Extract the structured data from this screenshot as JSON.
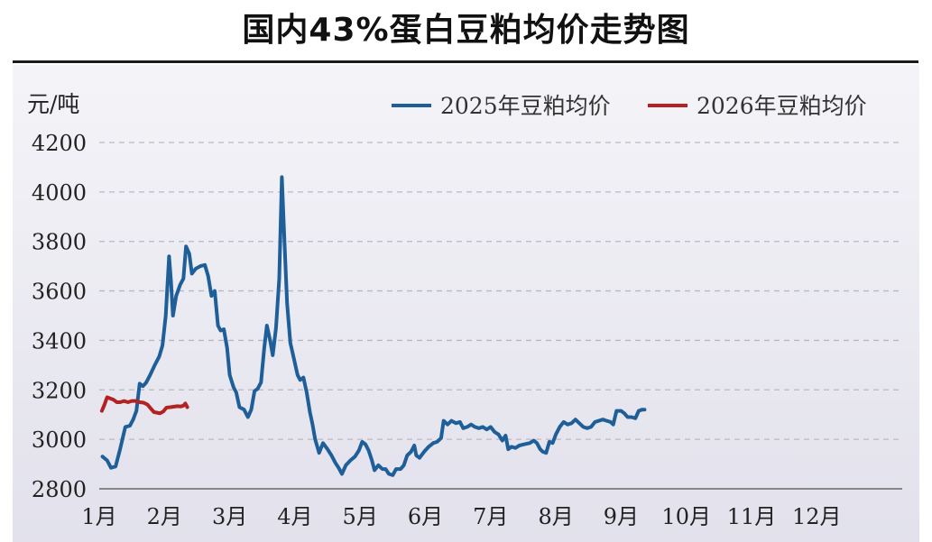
{
  "chart_data": {
    "type": "line",
    "title": "国内43%蛋白豆粕均价走势图",
    "ylabel": "元/吨",
    "ylim": [
      2800,
      4200
    ],
    "yticks": [
      2800,
      3000,
      3200,
      3400,
      3600,
      3800,
      4000,
      4200
    ],
    "xticks": [
      "1月",
      "2月",
      "3月",
      "4月",
      "5月",
      "6月",
      "7月",
      "8月",
      "9月",
      "10月",
      "11月",
      "12月"
    ],
    "x_unit": "month (1 = 1月)",
    "grid": true,
    "legend_position": "top",
    "series": [
      {
        "name": "2025年豆粕均价",
        "color": "#1f5f99",
        "points": [
          [
            1.05,
            2930
          ],
          [
            1.12,
            2915
          ],
          [
            1.18,
            2885
          ],
          [
            1.25,
            2890
          ],
          [
            1.32,
            2960
          ],
          [
            1.4,
            3050
          ],
          [
            1.47,
            3055
          ],
          [
            1.52,
            3080
          ],
          [
            1.57,
            3115
          ],
          [
            1.62,
            3225
          ],
          [
            1.67,
            3215
          ],
          [
            1.72,
            3230
          ],
          [
            1.78,
            3260
          ],
          [
            1.85,
            3300
          ],
          [
            1.92,
            3335
          ],
          [
            1.97,
            3380
          ],
          [
            2.02,
            3500
          ],
          [
            2.07,
            3740
          ],
          [
            2.1,
            3640
          ],
          [
            2.13,
            3500
          ],
          [
            2.18,
            3580
          ],
          [
            2.24,
            3625
          ],
          [
            2.29,
            3650
          ],
          [
            2.33,
            3780
          ],
          [
            2.38,
            3750
          ],
          [
            2.42,
            3670
          ],
          [
            2.48,
            3690
          ],
          [
            2.55,
            3700
          ],
          [
            2.62,
            3705
          ],
          [
            2.67,
            3660
          ],
          [
            2.72,
            3580
          ],
          [
            2.77,
            3600
          ],
          [
            2.82,
            3460
          ],
          [
            2.86,
            3440
          ],
          [
            2.91,
            3445
          ],
          [
            2.96,
            3370
          ],
          [
            3.0,
            3260
          ],
          [
            3.06,
            3210
          ],
          [
            3.1,
            3190
          ],
          [
            3.15,
            3130
          ],
          [
            3.22,
            3120
          ],
          [
            3.28,
            3090
          ],
          [
            3.33,
            3120
          ],
          [
            3.38,
            3195
          ],
          [
            3.43,
            3205
          ],
          [
            3.48,
            3230
          ],
          [
            3.53,
            3370
          ],
          [
            3.57,
            3460
          ],
          [
            3.62,
            3400
          ],
          [
            3.66,
            3340
          ],
          [
            3.71,
            3450
          ],
          [
            3.76,
            3650
          ],
          [
            3.8,
            4060
          ],
          [
            3.84,
            3800
          ],
          [
            3.88,
            3550
          ],
          [
            3.93,
            3390
          ],
          [
            3.98,
            3330
          ],
          [
            4.04,
            3260
          ],
          [
            4.08,
            3240
          ],
          [
            4.13,
            3250
          ],
          [
            4.18,
            3190
          ],
          [
            4.23,
            3110
          ],
          [
            4.27,
            3060
          ],
          [
            4.31,
            3000
          ],
          [
            4.37,
            2945
          ],
          [
            4.43,
            2985
          ],
          [
            4.5,
            2960
          ],
          [
            4.56,
            2935
          ],
          [
            4.62,
            2905
          ],
          [
            4.67,
            2885
          ],
          [
            4.72,
            2860
          ],
          [
            4.78,
            2895
          ],
          [
            4.85,
            2915
          ],
          [
            4.92,
            2930
          ],
          [
            4.98,
            2955
          ],
          [
            5.03,
            2990
          ],
          [
            5.08,
            2980
          ],
          [
            5.13,
            2955
          ],
          [
            5.18,
            2915
          ],
          [
            5.22,
            2875
          ],
          [
            5.28,
            2895
          ],
          [
            5.34,
            2880
          ],
          [
            5.39,
            2880
          ],
          [
            5.44,
            2860
          ],
          [
            5.5,
            2855
          ],
          [
            5.55,
            2880
          ],
          [
            5.62,
            2880
          ],
          [
            5.67,
            2895
          ],
          [
            5.72,
            2935
          ],
          [
            5.78,
            2950
          ],
          [
            5.83,
            2975
          ],
          [
            5.86,
            2935
          ],
          [
            5.91,
            2925
          ],
          [
            5.98,
            2950
          ],
          [
            6.05,
            2970
          ],
          [
            6.12,
            2985
          ],
          [
            6.18,
            2990
          ],
          [
            6.24,
            3005
          ],
          [
            6.28,
            3075
          ],
          [
            6.34,
            3060
          ],
          [
            6.4,
            3075
          ],
          [
            6.47,
            3065
          ],
          [
            6.53,
            3070
          ],
          [
            6.58,
            3045
          ],
          [
            6.64,
            3050
          ],
          [
            6.7,
            3060
          ],
          [
            6.76,
            3050
          ],
          [
            6.82,
            3045
          ],
          [
            6.88,
            3050
          ],
          [
            6.94,
            3040
          ],
          [
            7.0,
            3050
          ],
          [
            7.06,
            3030
          ],
          [
            7.12,
            3020
          ],
          [
            7.18,
            2995
          ],
          [
            7.23,
            3015
          ],
          [
            7.27,
            2960
          ],
          [
            7.32,
            2970
          ],
          [
            7.38,
            2965
          ],
          [
            7.44,
            2975
          ],
          [
            7.52,
            2980
          ],
          [
            7.6,
            2985
          ],
          [
            7.66,
            2995
          ],
          [
            7.71,
            2985
          ],
          [
            7.76,
            2960
          ],
          [
            7.8,
            2950
          ],
          [
            7.85,
            2945
          ],
          [
            7.9,
            2990
          ],
          [
            7.95,
            2985
          ],
          [
            8.0,
            3020
          ],
          [
            8.06,
            3050
          ],
          [
            8.12,
            3070
          ],
          [
            8.18,
            3060
          ],
          [
            8.24,
            3065
          ],
          [
            8.3,
            3080
          ],
          [
            8.36,
            3065
          ],
          [
            8.42,
            3050
          ],
          [
            8.48,
            3045
          ],
          [
            8.54,
            3050
          ],
          [
            8.6,
            3070
          ],
          [
            8.66,
            3075
          ],
          [
            8.72,
            3080
          ],
          [
            8.78,
            3075
          ],
          [
            8.84,
            3070
          ],
          [
            8.88,
            3060
          ],
          [
            8.93,
            3115
          ],
          [
            9.0,
            3115
          ],
          [
            9.05,
            3105
          ],
          [
            9.1,
            3090
          ],
          [
            9.16,
            3090
          ],
          [
            9.22,
            3085
          ],
          [
            9.27,
            3115
          ],
          [
            9.32,
            3120
          ],
          [
            9.36,
            3120
          ]
        ]
      },
      {
        "name": "2026年豆粕均价",
        "color": "#b22222",
        "points": [
          [
            1.04,
            3115
          ],
          [
            1.08,
            3140
          ],
          [
            1.12,
            3170
          ],
          [
            1.17,
            3165
          ],
          [
            1.22,
            3160
          ],
          [
            1.27,
            3150
          ],
          [
            1.32,
            3150
          ],
          [
            1.38,
            3155
          ],
          [
            1.44,
            3150
          ],
          [
            1.5,
            3155
          ],
          [
            1.56,
            3155
          ],
          [
            1.62,
            3150
          ],
          [
            1.68,
            3148
          ],
          [
            1.74,
            3140
          ],
          [
            1.79,
            3125
          ],
          [
            1.84,
            3110
          ],
          [
            1.88,
            3108
          ],
          [
            1.93,
            3105
          ],
          [
            1.98,
            3112
          ],
          [
            2.03,
            3128
          ],
          [
            2.09,
            3130
          ],
          [
            2.15,
            3132
          ],
          [
            2.2,
            3134
          ],
          [
            2.25,
            3133
          ],
          [
            2.29,
            3136
          ],
          [
            2.32,
            3145
          ],
          [
            2.35,
            3130
          ]
        ]
      }
    ]
  }
}
